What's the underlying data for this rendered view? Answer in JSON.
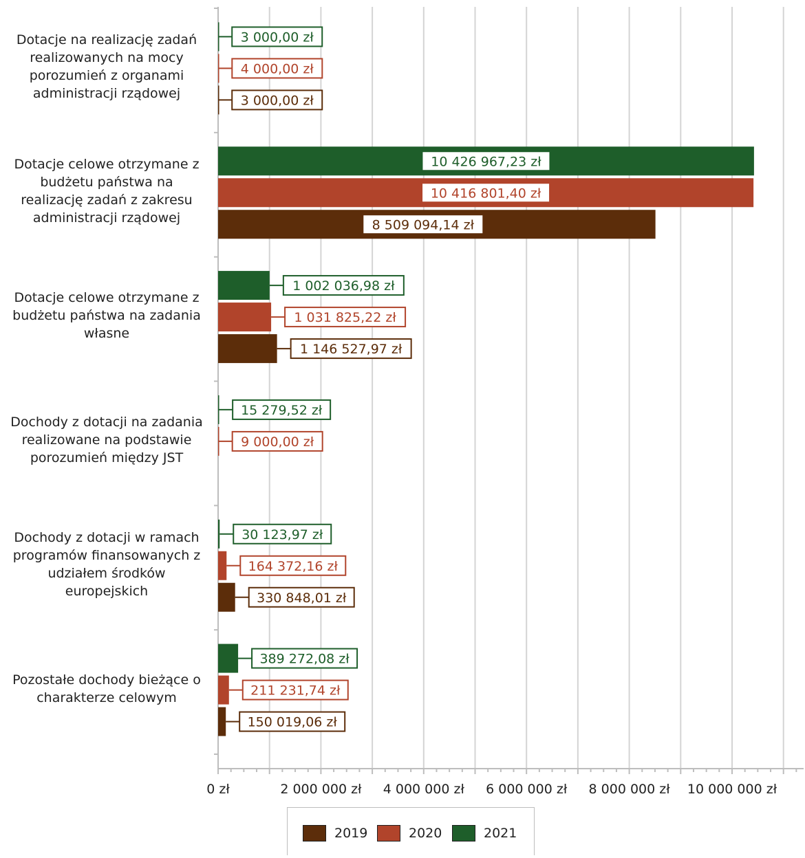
{
  "chart_data": {
    "type": "bar",
    "orientation": "horizontal",
    "categories": [
      [
        "Dotacje na realizację zadań",
        "realizowanych na mocy",
        "porozumień z organami",
        "administracji rządowej"
      ],
      [
        "Dotacje celowe otrzymane z",
        "budżetu państwa na",
        "realizację zadań z zakresu",
        "administracji rządowej"
      ],
      [
        "Dotacje celowe otrzymane z",
        "budżetu państwa na zadania",
        "własne"
      ],
      [
        "Dochody z dotacji na zadania",
        "realizowane na podstawie",
        "porozumień między JST"
      ],
      [
        "Dochody z dotacji w ramach",
        "programów finansowanych z",
        "udziałem środków",
        "europejskich"
      ],
      [
        "Pozostałe dochody bieżące o",
        "charakterze celowym"
      ]
    ],
    "series": [
      {
        "name": "2021",
        "color": "#1e5e2a",
        "values": [
          3000.0,
          10426967.23,
          1002036.98,
          15279.52,
          30123.97,
          389272.08
        ],
        "labels": [
          "3 000,00 zł",
          "10 426 967,23 zł",
          "1 002 036,98 zł",
          "15 279,52 zł",
          "30 123,97 zł",
          "389 272,08 zł"
        ]
      },
      {
        "name": "2020",
        "color": "#b1442b",
        "values": [
          4000.0,
          10416801.4,
          1031825.22,
          9000.0,
          164372.16,
          211231.74
        ],
        "labels": [
          "4 000,00 zł",
          "10 416 801,40 zł",
          "1 031 825,22 zł",
          "9 000,00 zł",
          "164 372,16 zł",
          "211 231,74 zł"
        ]
      },
      {
        "name": "2019",
        "color": "#5c2d0a",
        "values": [
          3000.0,
          8509094.14,
          1146527.97,
          0,
          330848.01,
          150019.06
        ],
        "labels": [
          "3 000,00 zł",
          "8 509 094,14 zł",
          "1 146 527,97 zł",
          "",
          "330 848,01 zł",
          "150 019,06 zł"
        ]
      }
    ],
    "xlim": [
      0,
      11400000
    ],
    "xticks": [
      0,
      2000000,
      4000000,
      6000000,
      8000000,
      10000000
    ],
    "xtick_labels": [
      "0 zł",
      "2 000 000 zł",
      "4 000 000 zł",
      "6 000 000 zł",
      "8 000 000 zł",
      "10 000 000 zł"
    ],
    "grid": true,
    "legend": {
      "placement": "bottom",
      "entries": [
        {
          "name": "2019",
          "color": "#5c2d0a"
        },
        {
          "name": "2020",
          "color": "#b1442b"
        },
        {
          "name": "2021",
          "color": "#1e5e2a"
        }
      ]
    }
  }
}
